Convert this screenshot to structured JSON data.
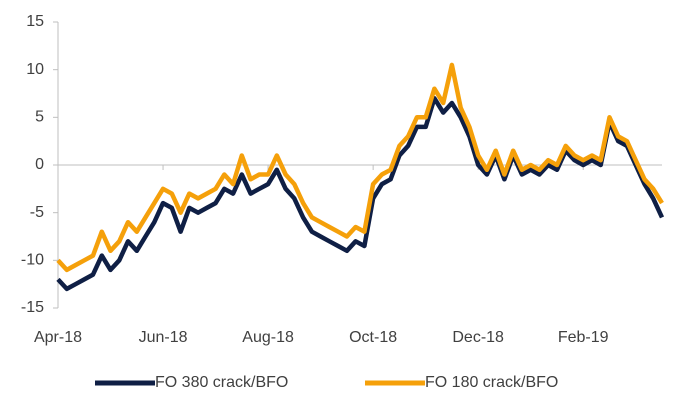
{
  "chart_data": {
    "type": "line",
    "categories": [
      "Apr-18",
      null,
      null,
      null,
      null,
      null,
      null,
      null,
      null,
      null,
      null,
      null,
      "Jun-18",
      null,
      null,
      null,
      null,
      null,
      null,
      null,
      null,
      null,
      null,
      null,
      "Aug-18",
      null,
      null,
      null,
      null,
      null,
      null,
      null,
      null,
      null,
      null,
      null,
      "Oct-18",
      null,
      null,
      null,
      null,
      null,
      null,
      null,
      null,
      null,
      null,
      null,
      "Dec-18",
      null,
      null,
      null,
      null,
      null,
      null,
      null,
      null,
      null,
      null,
      null,
      "Feb-19",
      null,
      null,
      null,
      null,
      null,
      null,
      null,
      null,
      null
    ],
    "series": [
      {
        "name": "FO 380 crack/BFO",
        "color": "#0f1f45",
        "values": [
          -12,
          -13,
          -12.5,
          -12,
          -11.5,
          -9.5,
          -11,
          -10,
          -8,
          -9,
          -7.5,
          -6,
          -4,
          -4.5,
          -7,
          -4.5,
          -5,
          -4.5,
          -4,
          -2.5,
          -3,
          -1,
          -3,
          -2.5,
          -2,
          -0.5,
          -2.5,
          -3.5,
          -5.5,
          -7,
          -7.5,
          -8,
          -8.5,
          -9,
          -8,
          -8.5,
          -3.5,
          -2,
          -1.5,
          1,
          2,
          4,
          4,
          7,
          5.5,
          6.5,
          5,
          3,
          0,
          -1,
          1,
          -1.5,
          1,
          -1,
          -0.5,
          -1,
          0,
          -0.5,
          1.5,
          0.5,
          0,
          0.5,
          0,
          4.5,
          2.5,
          2,
          0,
          -2,
          -3.5,
          -5.5
        ]
      },
      {
        "name": "FO 180 crack/BFO",
        "color": "#f5a00a",
        "values": [
          -10,
          -11,
          -10.5,
          -10,
          -9.5,
          -7,
          -9,
          -8,
          -6,
          -7,
          -5.5,
          -4,
          -2.5,
          -3,
          -5,
          -3,
          -3.5,
          -3,
          -2.5,
          -1,
          -2,
          1,
          -1.5,
          -1,
          -1,
          1,
          -1,
          -2,
          -4,
          -5.5,
          -6,
          -6.5,
          -7,
          -7.5,
          -6.5,
          -7,
          -2,
          -1,
          -0.5,
          2,
          3,
          5,
          5,
          8,
          6.5,
          10.5,
          6,
          4,
          1,
          -0.5,
          1.5,
          -1,
          1.5,
          -0.5,
          0,
          -0.5,
          0.5,
          0,
          2,
          1,
          0.5,
          1,
          0.5,
          5,
          3,
          2.5,
          0.5,
          -1.5,
          -2.5,
          -4
        ]
      }
    ],
    "ylim": [
      -15,
      15
    ],
    "yticks": [
      -15,
      -10,
      -5,
      0,
      5,
      10,
      15
    ],
    "legend": "bottom"
  }
}
